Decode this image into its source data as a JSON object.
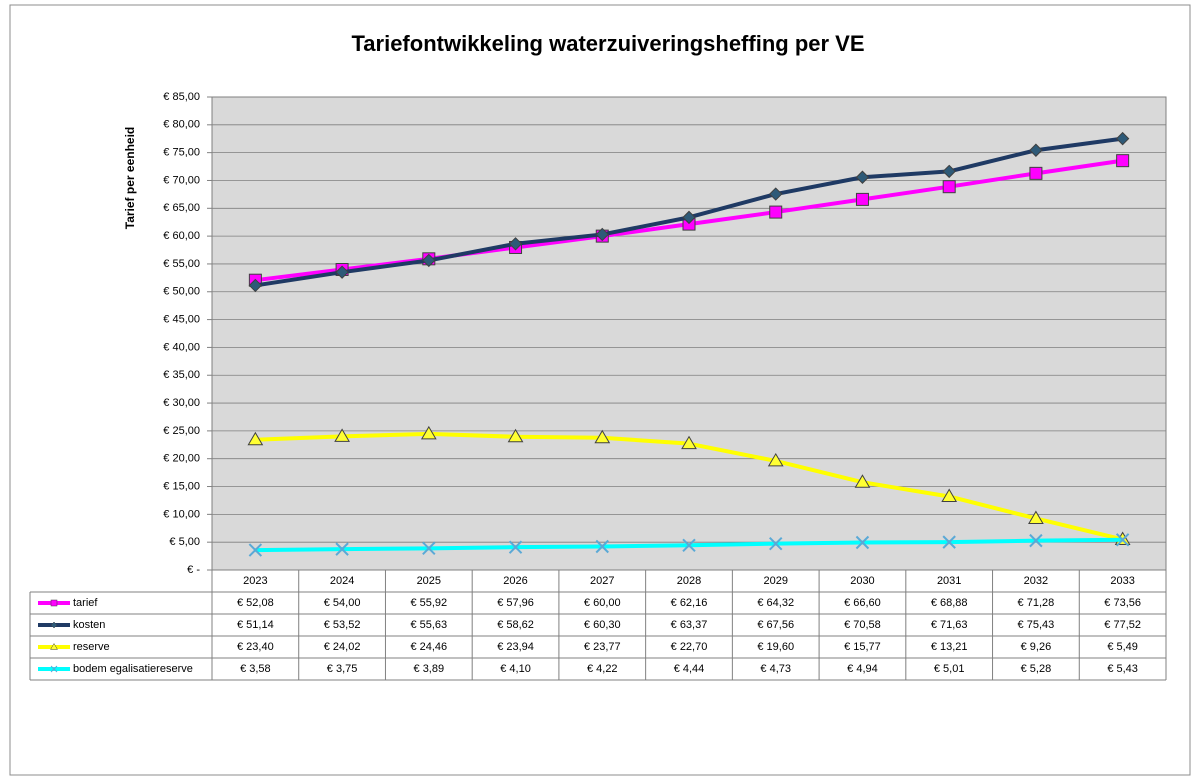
{
  "chart_data": {
    "type": "line",
    "title": "Tariefontwikkeling waterzuiveringsheffing per VE",
    "ylabel": "Tarief per eenheid",
    "categories": [
      "2023",
      "2024",
      "2025",
      "2026",
      "2027",
      "2028",
      "2029",
      "2030",
      "2031",
      "2032",
      "2033"
    ],
    "ylim": [
      0,
      85
    ],
    "yticks": [
      {
        "value": 0,
        "label": "€ -"
      },
      {
        "value": 5,
        "label": "€ 5,00"
      },
      {
        "value": 10,
        "label": "€ 10,00"
      },
      {
        "value": 15,
        "label": "€ 15,00"
      },
      {
        "value": 20,
        "label": "€ 20,00"
      },
      {
        "value": 25,
        "label": "€ 25,00"
      },
      {
        "value": 30,
        "label": "€ 30,00"
      },
      {
        "value": 35,
        "label": "€ 35,00"
      },
      {
        "value": 40,
        "label": "€ 40,00"
      },
      {
        "value": 45,
        "label": "€ 45,00"
      },
      {
        "value": 50,
        "label": "€ 50,00"
      },
      {
        "value": 55,
        "label": "€ 55,00"
      },
      {
        "value": 60,
        "label": "€ 60,00"
      },
      {
        "value": 65,
        "label": "€ 65,00"
      },
      {
        "value": 70,
        "label": "€ 70,00"
      },
      {
        "value": 75,
        "label": "€ 75,00"
      },
      {
        "value": 80,
        "label": "€ 80,00"
      },
      {
        "value": 85,
        "label": "€ 85,00"
      }
    ],
    "grid": true,
    "series": [
      {
        "name": "tarief",
        "color": "#ff00ff",
        "marker": "square",
        "marker_color": "#ff00ff",
        "values": [
          52.08,
          54.0,
          55.92,
          57.96,
          60.0,
          62.16,
          64.32,
          66.6,
          68.88,
          71.28,
          73.56
        ],
        "value_labels": [
          "€ 52,08",
          "€ 54,00",
          "€ 55,92",
          "€ 57,96",
          "€ 60,00",
          "€ 62,16",
          "€ 64,32",
          "€ 66,60",
          "€ 68,88",
          "€ 71,28",
          "€ 73,56"
        ]
      },
      {
        "name": "kosten",
        "color": "#1f3a64",
        "marker": "diamond",
        "marker_color": "#2e5a78",
        "values": [
          51.14,
          53.52,
          55.63,
          58.62,
          60.3,
          63.37,
          67.56,
          70.58,
          71.63,
          75.43,
          77.52
        ],
        "value_labels": [
          "€ 51,14",
          "€ 53,52",
          "€ 55,63",
          "€ 58,62",
          "€ 60,30",
          "€ 63,37",
          "€ 67,56",
          "€ 70,58",
          "€ 71,63",
          "€ 75,43",
          "€ 77,52"
        ]
      },
      {
        "name": "reserve",
        "color": "#ffff00",
        "marker": "triangle",
        "marker_color": "#ffff33",
        "values": [
          23.4,
          24.02,
          24.46,
          23.94,
          23.77,
          22.7,
          19.6,
          15.77,
          13.21,
          9.26,
          5.49
        ],
        "value_labels": [
          "€ 23,40",
          "€ 24,02",
          "€ 24,46",
          "€ 23,94",
          "€ 23,77",
          "€ 22,70",
          "€ 19,60",
          "€ 15,77",
          "€ 13,21",
          "€ 9,26",
          "€ 5,49"
        ]
      },
      {
        "name": "bodem egalisatiereserve",
        "color": "#00ffff",
        "marker": "x",
        "marker_color": "#5aa9d6",
        "values": [
          3.58,
          3.75,
          3.89,
          4.1,
          4.22,
          4.44,
          4.73,
          4.94,
          5.01,
          5.28,
          5.43
        ],
        "value_labels": [
          "€ 3,58",
          "€ 3,75",
          "€ 3,89",
          "€ 4,10",
          "€ 4,22",
          "€ 4,44",
          "€ 4,73",
          "€ 4,94",
          "€ 5,01",
          "€ 5,28",
          "€ 5,43"
        ]
      }
    ]
  }
}
